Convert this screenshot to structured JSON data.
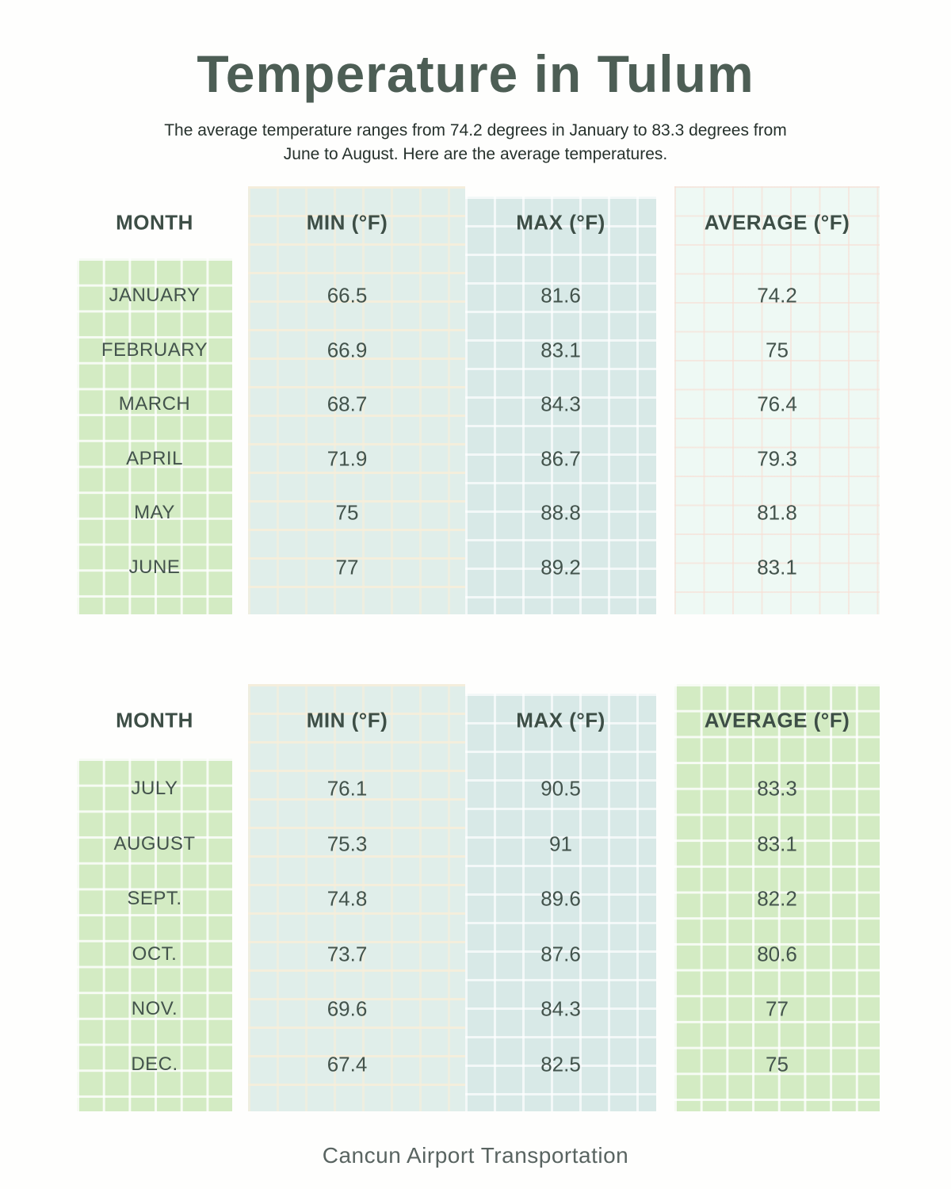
{
  "title": "Temperature in Tulum",
  "subtitle_line1": "The average temperature ranges from 74.2 degrees in January to 83.3 degrees from",
  "subtitle_line2": "June to August. Here are the average temperatures.",
  "footer": "Cancun Airport Transportation",
  "columns": [
    "MONTH",
    "MIN (°F)",
    "MAX (°F)",
    "AVERAGE (°F)"
  ],
  "tables": [
    {
      "rows": [
        {
          "month": "JANUARY",
          "min": "66.5",
          "max": "81.6",
          "avg": "74.2"
        },
        {
          "month": "FEBRUARY",
          "min": "66.9",
          "max": "83.1",
          "avg": "75"
        },
        {
          "month": "MARCH",
          "min": "68.7",
          "max": "84.3",
          "avg": "76.4"
        },
        {
          "month": "APRIL",
          "min": "71.9",
          "max": "86.7",
          "avg": "79.3"
        },
        {
          "month": "MAY",
          "min": "75",
          "max": "88.8",
          "avg": "81.8"
        },
        {
          "month": "JUNE",
          "min": "77",
          "max": "89.2",
          "avg": "83.1"
        }
      ]
    },
    {
      "rows": [
        {
          "month": "JULY",
          "min": "76.1",
          "max": "90.5",
          "avg": "83.3"
        },
        {
          "month": "AUGUST",
          "min": "75.3",
          "max": "91",
          "avg": "83.1"
        },
        {
          "month": "SEPT.",
          "min": "74.8",
          "max": "89.6",
          "avg": "82.2"
        },
        {
          "month": "OCT.",
          "min": "73.7",
          "max": "87.6",
          "avg": "80.6"
        },
        {
          "month": "NOV.",
          "min": "69.6",
          "max": "84.3",
          "avg": "77"
        },
        {
          "month": "DEC.",
          "min": "67.4",
          "max": "82.5",
          "avg": "75"
        }
      ]
    }
  ],
  "colors": {
    "title_text": "#4d5e55",
    "body_text": "#43534c",
    "green_panel": "#d3ebc3",
    "min_panel": "#e0eeea",
    "max_panel": "#d8e9e7",
    "average_panel_light": "#eef9f4",
    "grid_white": "#ffffff",
    "grid_cream": "#f6eedb",
    "grid_pink": "#f9ddd3"
  },
  "chart_data": {
    "type": "table",
    "title": "Temperature in Tulum",
    "columns": [
      "MONTH",
      "MIN (°F)",
      "MAX (°F)",
      "AVERAGE (°F)"
    ],
    "rows": [
      [
        "JANUARY",
        66.5,
        81.6,
        74.2
      ],
      [
        "FEBRUARY",
        66.9,
        83.1,
        75
      ],
      [
        "MARCH",
        68.7,
        84.3,
        76.4
      ],
      [
        "APRIL",
        71.9,
        86.7,
        79.3
      ],
      [
        "MAY",
        75,
        88.8,
        81.8
      ],
      [
        "JUNE",
        77,
        89.2,
        83.1
      ],
      [
        "JULY",
        76.1,
        90.5,
        83.3
      ],
      [
        "AUGUST",
        75.3,
        91,
        83.1
      ],
      [
        "SEPT.",
        74.8,
        89.6,
        82.2
      ],
      [
        "OCT.",
        73.7,
        87.6,
        80.6
      ],
      [
        "NOV.",
        69.6,
        84.3,
        77
      ],
      [
        "DEC.",
        67.4,
        82.5,
        75
      ]
    ]
  }
}
